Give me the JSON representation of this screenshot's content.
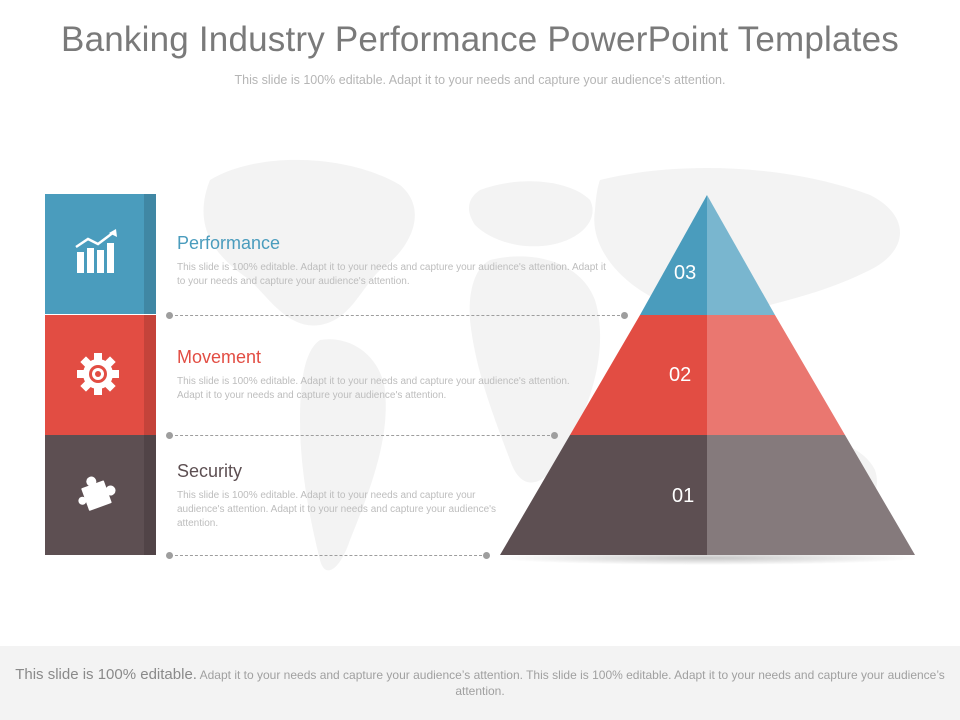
{
  "slide": {
    "title": "Banking Industry Performance PowerPoint Templates",
    "subtitle": "This slide is 100% editable. Adapt it to your needs and capture your audience's attention."
  },
  "colors": {
    "blue": "#4a9cbd",
    "red": "#e24d43",
    "dark": "#5d4f52"
  },
  "items": [
    {
      "title": "Performance",
      "text": "This slide is 100% editable. Adapt it to your needs and capture your audience's attention. Adapt it to your needs and capture your audience's attention.",
      "icon": "bar-chart-growth-icon"
    },
    {
      "title": "Movement",
      "text": "This slide is 100% editable. Adapt it to your needs and capture your audience's attention. Adapt it to your needs and capture your audience's attention.",
      "icon": "gear-target-icon"
    },
    {
      "title": "Security",
      "text": "This slide is 100% editable. Adapt it to your needs and capture your audience's attention. Adapt it to your needs and capture your audience's attention.",
      "icon": "puzzle-piece-icon"
    }
  ],
  "pyramid": {
    "levels": [
      "03",
      "02",
      "01"
    ]
  },
  "footer": {
    "lead": "This slide is 100% editable.",
    "text": "Adapt it to your needs and capture your audience’s attention. This slide is 100% editable. Adapt it to your needs and capture your audience’s attention."
  }
}
